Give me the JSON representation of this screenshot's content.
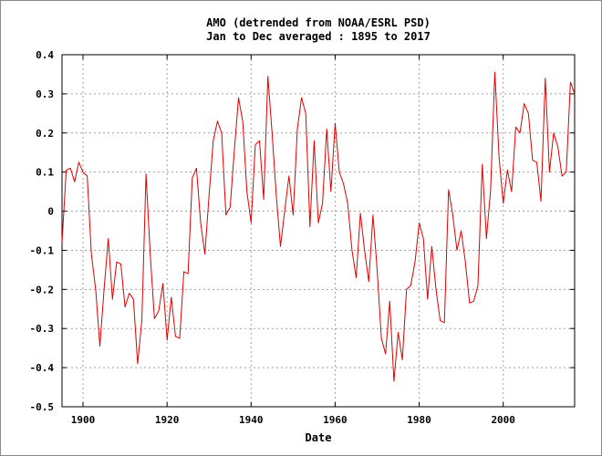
{
  "chart_data": {
    "type": "line",
    "title": "AMO (detrended from NOAA/ESRL PSD)",
    "subtitle": "Jan to Dec averaged : 1895 to 2017",
    "xlabel": "Date",
    "ylabel": "",
    "xlim": [
      1895,
      2017
    ],
    "ylim": [
      -0.5,
      0.4
    ],
    "x_ticks": [
      1900,
      1920,
      1940,
      1960,
      1980,
      2000
    ],
    "x_tick_labels": [
      "1900",
      "1920",
      "1940",
      "1960",
      "1980",
      "2000"
    ],
    "y_ticks": [
      -0.5,
      -0.4,
      -0.3,
      -0.2,
      -0.1,
      0,
      0.1,
      0.2,
      0.3,
      0.4
    ],
    "y_tick_labels": [
      "-0.5",
      "-0.4",
      "-0.3",
      "-0.2",
      "-0.1",
      "0",
      "0.1",
      "0.2",
      "0.3",
      "0.4"
    ],
    "grid": true,
    "line_color": "#e00000",
    "series": [
      {
        "x": [
          1895,
          1896,
          1897,
          1898,
          1899,
          1900,
          1901,
          1902,
          1903,
          1904,
          1905,
          1906,
          1907,
          1908,
          1909,
          1910,
          1911,
          1912,
          1913,
          1914,
          1915,
          1916,
          1917,
          1918,
          1919,
          1920,
          1921,
          1922,
          1923,
          1924,
          1925,
          1926,
          1927,
          1928,
          1929,
          1930,
          1931,
          1932,
          1933,
          1934,
          1935,
          1936,
          1937,
          1938,
          1939,
          1940,
          1941,
          1942,
          1943,
          1944,
          1945,
          1946,
          1947,
          1948,
          1949,
          1950,
          1951,
          1952,
          1953,
          1954,
          1955,
          1956,
          1957,
          1958,
          1959,
          1960,
          1961,
          1962,
          1963,
          1964,
          1965,
          1966,
          1967,
          1968,
          1969,
          1970,
          1971,
          1972,
          1973,
          1974,
          1975,
          1976,
          1977,
          1978,
          1979,
          1980,
          1981,
          1982,
          1983,
          1984,
          1985,
          1986,
          1987,
          1988,
          1989,
          1990,
          1991,
          1992,
          1993,
          1994,
          1995,
          1996,
          1997,
          1998,
          1999,
          2000,
          2001,
          2002,
          2003,
          2004,
          2005,
          2006,
          2007,
          2008,
          2009,
          2010,
          2011,
          2012,
          2013,
          2014,
          2015,
          2016,
          2017
        ],
        "values": [
          -0.08,
          0.105,
          0.11,
          0.075,
          0.125,
          0.1,
          0.09,
          -0.11,
          -0.2,
          -0.345,
          -0.2,
          -0.07,
          -0.225,
          -0.13,
          -0.135,
          -0.245,
          -0.21,
          -0.225,
          -0.39,
          -0.28,
          0.095,
          -0.11,
          -0.275,
          -0.255,
          -0.185,
          -0.33,
          -0.22,
          -0.32,
          -0.325,
          -0.155,
          -0.16,
          0.085,
          0.11,
          -0.03,
          -0.11,
          0.04,
          0.18,
          0.23,
          0.2,
          -0.01,
          0.01,
          0.155,
          0.29,
          0.23,
          0.05,
          -0.03,
          0.17,
          0.18,
          0.03,
          0.345,
          0.2,
          0.04,
          -0.09,
          0,
          0.09,
          -0.01,
          0.21,
          0.29,
          0.25,
          -0.04,
          0.18,
          -0.03,
          0.02,
          0.21,
          0.05,
          0.225,
          0.1,
          0.07,
          0.02,
          -0.1,
          -0.17,
          -0.005,
          -0.1,
          -0.18,
          -0.01,
          -0.15,
          -0.325,
          -0.365,
          -0.23,
          -0.435,
          -0.31,
          -0.38,
          -0.2,
          -0.19,
          -0.13,
          -0.03,
          -0.07,
          -0.225,
          -0.09,
          -0.2,
          -0.28,
          -0.285,
          0.055,
          -0.01,
          -0.1,
          -0.05,
          -0.13,
          -0.235,
          -0.23,
          -0.19,
          0.12,
          -0.07,
          0.055,
          0.355,
          0.14,
          0.02,
          0.105,
          0.05,
          0.215,
          0.2,
          0.275,
          0.25,
          0.13,
          0.125,
          0.025,
          0.34,
          0.1,
          0.2,
          0.165,
          0.09,
          0.1,
          0.33,
          0.3
        ]
      }
    ]
  }
}
